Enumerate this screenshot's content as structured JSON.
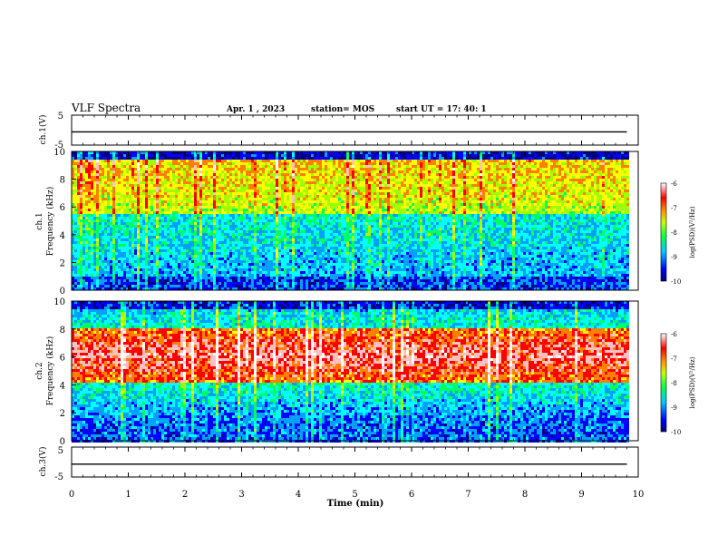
{
  "header": {
    "title": "VLF Spectra",
    "date": "Apr. 1 , 2023",
    "station": "station= MOS",
    "start": "start UT = 17: 40: 1"
  },
  "chart_data": [
    {
      "type": "line",
      "name": "channel-1-waveform",
      "ylabel": "ch.1(V)",
      "ylim": [
        -5,
        5
      ],
      "yticks": [
        "5",
        "-5"
      ],
      "xlim": [
        0,
        10
      ],
      "x": [
        0,
        9.8
      ],
      "y": [
        -0.6,
        -0.6
      ]
    },
    {
      "type": "heatmap",
      "name": "channel-1-spectrogram",
      "ylabel_lines": [
        "ch.1",
        "Frequency (kHz)"
      ],
      "ylim": [
        0,
        10
      ],
      "yticks": [
        "0",
        "2",
        "4",
        "6",
        "8",
        "10"
      ],
      "xlim": [
        0,
        10
      ],
      "data_end": 9.8,
      "colorbar": {
        "label": "log(PSD)(V²/Hz)",
        "range": [
          -10,
          -6
        ],
        "ticks": [
          "-6",
          "-7",
          "-8",
          "-9",
          "-10"
        ]
      }
    },
    {
      "type": "heatmap",
      "name": "channel-2-spectrogram",
      "ylabel_lines": [
        "ch.2",
        "Frequency (kHz)"
      ],
      "ylim": [
        0,
        10
      ],
      "yticks": [
        "0",
        "2",
        "4",
        "6",
        "8",
        "10"
      ],
      "xlim": [
        0,
        10
      ],
      "data_end": 9.8,
      "colorbar": {
        "label": "log(PSD)(V²/Hz)",
        "range": [
          -10,
          -6
        ],
        "ticks": [
          "-6",
          "-7",
          "-8",
          "-9",
          "-10"
        ]
      }
    },
    {
      "type": "line",
      "name": "channel-3-waveform",
      "ylabel": "ch.3(V)",
      "ylim": [
        -5,
        5
      ],
      "yticks": [
        "5",
        "-5"
      ],
      "xlim": [
        0,
        10
      ],
      "x": [
        0,
        9.8
      ],
      "y": [
        -0.7,
        -0.7
      ]
    }
  ],
  "xaxis": {
    "label": "Time (min)",
    "ticks": [
      "0",
      "1",
      "2",
      "3",
      "4",
      "5",
      "6",
      "7",
      "8",
      "9",
      "10"
    ]
  },
  "colors": {
    "scale": [
      "#000080",
      "#0000ff",
      "#00a0ff",
      "#00ffff",
      "#00ff60",
      "#a0ff00",
      "#ffff00",
      "#ff8000",
      "#ff0000",
      "#ffc0c0",
      "#ffffff"
    ]
  }
}
